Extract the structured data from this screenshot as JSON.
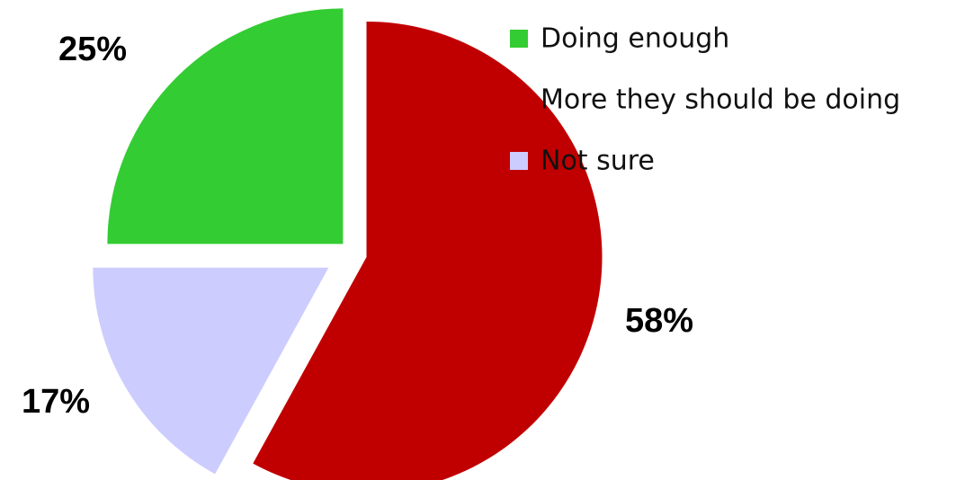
{
  "chart_data": {
    "type": "pie",
    "title": "",
    "exploded": true,
    "slices": [
      {
        "label": "Doing enough",
        "value": 25,
        "display": "25%",
        "color": "#33cc33"
      },
      {
        "label": "More they should be doing",
        "value": 58,
        "display": "58%",
        "color": "#c00000"
      },
      {
        "label": "Not sure",
        "value": 17,
        "display": "17%",
        "color": "#ccccff"
      }
    ],
    "legend": {
      "position": "top-right",
      "items": [
        "Doing enough",
        "More they should be doing",
        "Not sure"
      ]
    }
  }
}
